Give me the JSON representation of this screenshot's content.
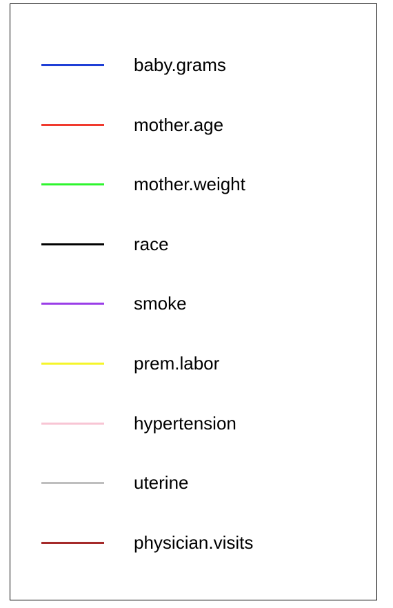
{
  "chart_data": {
    "type": "line",
    "legend": [
      {
        "name": "baby.grams",
        "color": "#1f3fd6"
      },
      {
        "name": "mother.age",
        "color": "#f03a2e"
      },
      {
        "name": "mother.weight",
        "color": "#2ef52e"
      },
      {
        "name": "race",
        "color": "#000000"
      },
      {
        "name": "smoke",
        "color": "#9a3ee8"
      },
      {
        "name": "prem.labor",
        "color": "#f5f52a"
      },
      {
        "name": "hypertension",
        "color": "#f8c5d4"
      },
      {
        "name": "uterine",
        "color": "#bebebe"
      },
      {
        "name": "physician.visits",
        "color": "#a52a2a"
      }
    ]
  }
}
